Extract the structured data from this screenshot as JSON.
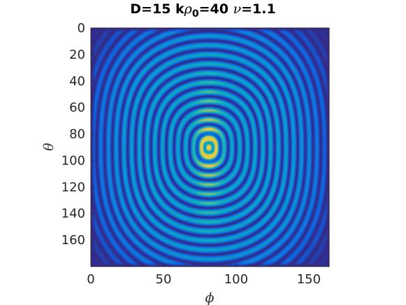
{
  "chart_data": {
    "type": "heatmap",
    "title": {
      "lead": "D=15 k",
      "rho": "ρ",
      "subscript": "0",
      "mid": "=40 ",
      "nu": "ν",
      "tail": "=1.1"
    },
    "xlabel": "ϕ",
    "ylabel": "θ",
    "xlim": [
      0,
      164
    ],
    "ylim": [
      0,
      180
    ],
    "y_reversed": true,
    "xticks": [
      0,
      50,
      100,
      150
    ],
    "yticks": [
      0,
      20,
      40,
      60,
      80,
      100,
      120,
      140,
      160
    ],
    "colormap": "parula",
    "colors": {
      "low": "#352a87",
      "mid_blue": "#0f5cdd",
      "cyan": "#06a7c6",
      "green": "#7cbf7b",
      "yellow": "#f9fb0e"
    },
    "pattern": {
      "description_center_phi": 81,
      "center_theta": 90,
      "ring_count": 15,
      "peak_value": 1.0
    }
  }
}
